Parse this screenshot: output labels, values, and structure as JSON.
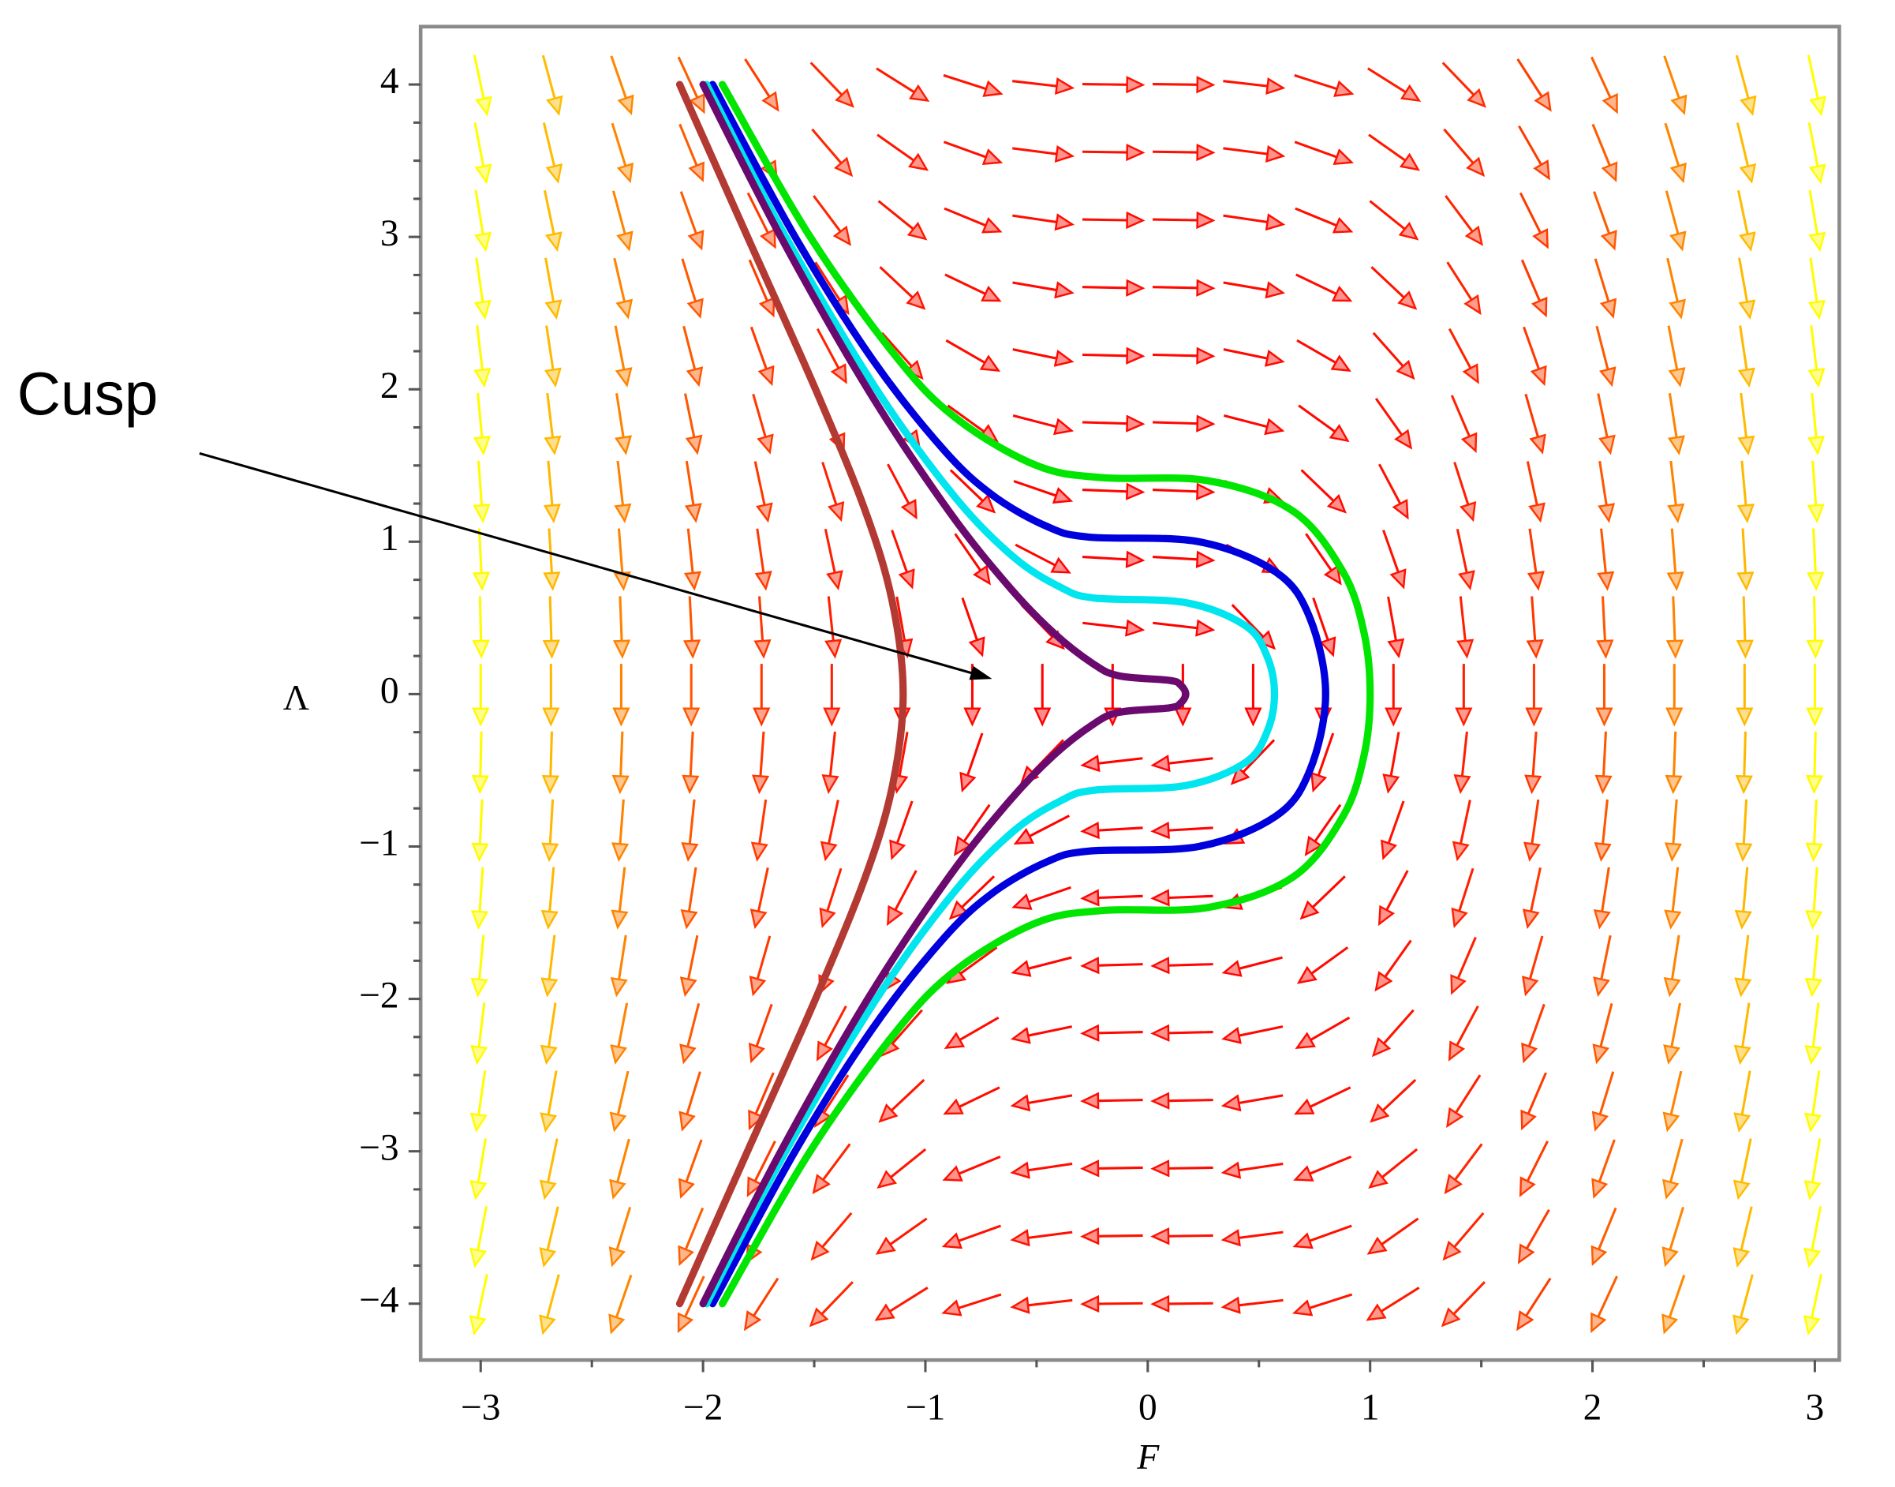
{
  "chart_data": {
    "type": "phase-portrait",
    "xlabel": "F",
    "ylabel": "Λ",
    "xlim": [
      -3.27,
      3.11
    ],
    "ylim": [
      -4.37,
      4.38
    ],
    "xticks": [
      {
        "value": -3,
        "label": "−3"
      },
      {
        "value": -2,
        "label": "−2"
      },
      {
        "value": -1,
        "label": "−1"
      },
      0,
      1,
      2,
      3
    ],
    "xminorticks": [
      -2.5,
      -1.5,
      -0.5,
      0.5,
      1.5,
      2.5
    ],
    "yticks": [
      {
        "value": -4,
        "label": "−4"
      },
      {
        "value": -3,
        "label": "−3"
      },
      {
        "value": -2,
        "label": "−2"
      },
      {
        "value": -1,
        "label": "−1"
      },
      0,
      1,
      2,
      3,
      4
    ],
    "yminorticks": [
      -3.75,
      -3.5,
      -3.25,
      -2.75,
      -2.5,
      -2.25,
      -1.75,
      -1.5,
      -1.25,
      -0.75,
      -0.5,
      -0.25,
      0.25,
      0.5,
      0.75,
      1.25,
      1.5,
      1.75,
      2.25,
      2.5,
      2.75,
      3.25,
      3.5,
      3.75
    ],
    "annotation": {
      "text": "Cusp",
      "x": -0.7,
      "y": 0.1
    },
    "field": {
      "colors": [
        "#ff0000",
        "#ffff00"
      ],
      "F": [
        -3,
        -2.684,
        -2.368,
        -2.053,
        -1.737,
        -1.421,
        -1.105,
        -0.789,
        -0.474,
        -0.158,
        0.158,
        0.474,
        0.789,
        1.105,
        1.421,
        1.737,
        2.053,
        2.368,
        2.684,
        3
      ],
      "dLambda": [
        -27,
        -21.61,
        -16.82,
        -12.64,
        -9.05,
        -6.06,
        -3.66,
        -1.87,
        -0.67,
        -0.075,
        -0.075,
        -0.67,
        -1.87,
        -3.66,
        -6.06,
        -9.05,
        -12.64,
        -16.82,
        -21.61,
        -27
      ],
      "Lambda": [
        4,
        3.556,
        3.111,
        2.667,
        2.222,
        1.778,
        1.333,
        0.889,
        0.444,
        0,
        -0.444,
        -0.889,
        -1.333,
        -1.778,
        -2.222,
        -2.667,
        -3.111,
        -3.556,
        -4
      ],
      "dF": [
        4,
        3.556,
        3.111,
        2.667,
        2.222,
        1.778,
        1.333,
        0.889,
        0.444,
        0,
        -0.444,
        -0.889,
        -1.333,
        -1.778,
        -2.222,
        -2.667,
        -3.111,
        -3.556,
        -4
      ]
    },
    "series": [
      {
        "color": "#b33a33",
        "x": [
          -2.105,
          -1.8,
          -1.494,
          -1.27,
          -1.148,
          -1.1,
          -1.148,
          -1.27,
          -1.494,
          -1.8,
          -2.105
        ],
        "y": [
          4,
          3,
          2,
          1.2,
          0.6,
          0,
          -0.6,
          -1.2,
          -2,
          -3,
          -4
        ]
      },
      {
        "color": "#00e600",
        "x": [
          -1.913,
          -1.518,
          -1.124,
          -0.853,
          -0.5,
          -0.202,
          0.271,
          0.654,
          0.879,
          0.973,
          1,
          0.973,
          0.879,
          0.654,
          0.271,
          -0.202,
          -0.5,
          -0.853,
          -1.124,
          -1.518,
          -1.913
        ],
        "y": [
          4,
          3,
          2.2,
          1.8,
          1.5,
          1.42,
          1.4,
          1.2,
          0.8,
          0.4,
          0,
          -0.4,
          -0.8,
          -1.2,
          -1.4,
          -1.42,
          -1.5,
          -1.8,
          -2.2,
          -3,
          -4
        ]
      },
      {
        "color": "#0000dd",
        "x": [
          -1.957,
          -1.586,
          -1.24,
          -0.916,
          -0.693,
          -0.453,
          -0.264,
          0.229,
          0.577,
          0.729,
          0.8,
          0.729,
          0.577,
          0.229,
          -0.264,
          -0.453,
          -0.693,
          -0.916,
          -1.24,
          -1.586,
          -1.957
        ],
        "y": [
          4,
          3,
          2.2,
          1.6,
          1.3,
          1.1,
          1.03,
          1,
          0.8,
          0.5,
          0,
          -0.5,
          -0.8,
          -1,
          -1.03,
          -1.1,
          -1.3,
          -1.6,
          -2.2,
          -3,
          -4
        ]
      },
      {
        "color": "#00e5ee",
        "x": [
          -1.984,
          -1.628,
          -1.22,
          -0.871,
          -0.604,
          -0.391,
          -0.238,
          0.171,
          0.438,
          0.536,
          0.57,
          0.536,
          0.438,
          0.171,
          -0.238,
          -0.391,
          -0.604,
          -0.871,
          -1.22,
          -1.628,
          -1.984
        ],
        "y": [
          4,
          3,
          2,
          1.3,
          0.9,
          0.7,
          0.63,
          0.6,
          0.45,
          0.25,
          0,
          -0.25,
          -0.45,
          -0.6,
          -0.63,
          -0.7,
          -0.9,
          -1.3,
          -2,
          -3,
          -4
        ]
      },
      {
        "color": "#6a0a6e",
        "x": [
          -2,
          -1.65,
          -1.259,
          -0.894,
          -0.621,
          -0.422,
          -0.247,
          -0.13,
          0.098,
          0.147,
          0.171,
          0.147,
          0.098,
          -0.13,
          -0.247,
          -0.422,
          -0.621,
          -0.894,
          -1.259,
          -1.65,
          -2
        ],
        "y": [
          4,
          3,
          2,
          1.2,
          0.7,
          0.4,
          0.2,
          0.12,
          0.09,
          0.06,
          0,
          -0.06,
          -0.09,
          -0.12,
          -0.2,
          -0.4,
          -0.7,
          -1.2,
          -2,
          -3,
          -4
        ]
      }
    ]
  }
}
